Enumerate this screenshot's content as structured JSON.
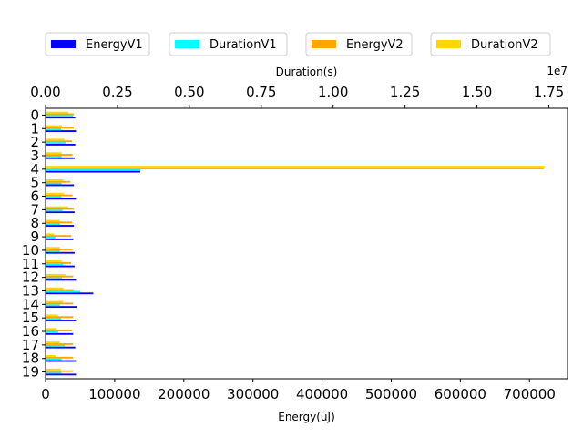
{
  "chart_data": {
    "type": "bar",
    "orientation": "horizontal",
    "categories": [
      "0",
      "1",
      "2",
      "3",
      "4",
      "5",
      "6",
      "7",
      "8",
      "9",
      "10",
      "11",
      "12",
      "13",
      "14",
      "15",
      "16",
      "17",
      "18",
      "19"
    ],
    "series": [
      {
        "name": "EnergyV1",
        "axis": "bottom",
        "color": "#0000ff",
        "values": [
          43000,
          44000,
          43000,
          42000,
          137000,
          41000,
          44000,
          42000,
          41000,
          40000,
          42000,
          42000,
          44000,
          69000,
          45000,
          44000,
          40000,
          43000,
          44000,
          44000
        ]
      },
      {
        "name": "DurationV1",
        "axis": "top",
        "color": "#00ffff",
        "values": [
          950000,
          540000,
          700000,
          560000,
          3300000,
          560000,
          540000,
          590000,
          500000,
          340000,
          500000,
          610000,
          570000,
          1200000,
          500000,
          540000,
          440000,
          660000,
          560000,
          540000
        ]
      },
      {
        "name": "EnergyV2",
        "axis": "bottom",
        "color": "#ffa500",
        "values": [
          41000,
          41000,
          38000,
          39000,
          721000,
          36000,
          39000,
          41000,
          38000,
          37000,
          39000,
          37000,
          40000,
          40000,
          40000,
          40000,
          38000,
          40000,
          40000,
          40000
        ]
      },
      {
        "name": "DurationV2",
        "axis": "top",
        "color": "#ffd700",
        "values": [
          800000,
          570000,
          650000,
          560000,
          17350000,
          620000,
          640000,
          780000,
          490000,
          300000,
          490000,
          560000,
          690000,
          620000,
          610000,
          430000,
          390000,
          490000,
          350000,
          530000
        ]
      }
    ],
    "xlabel": "Energy(uJ)",
    "xlabel_top": "Duration(s)",
    "x_ticks": [
      "0",
      "100000",
      "200000",
      "300000",
      "400000",
      "500000",
      "600000",
      "700000"
    ],
    "x_top_ticks": [
      "0.00",
      "0.25",
      "0.50",
      "0.75",
      "1.00",
      "1.25",
      "1.50",
      "1.75"
    ],
    "x_top_multiplier": "1e7",
    "xlim": [
      0,
      755000
    ],
    "xlim_top": [
      0,
      18150000
    ],
    "y_inverted": true,
    "grid": false,
    "legend": "top"
  }
}
